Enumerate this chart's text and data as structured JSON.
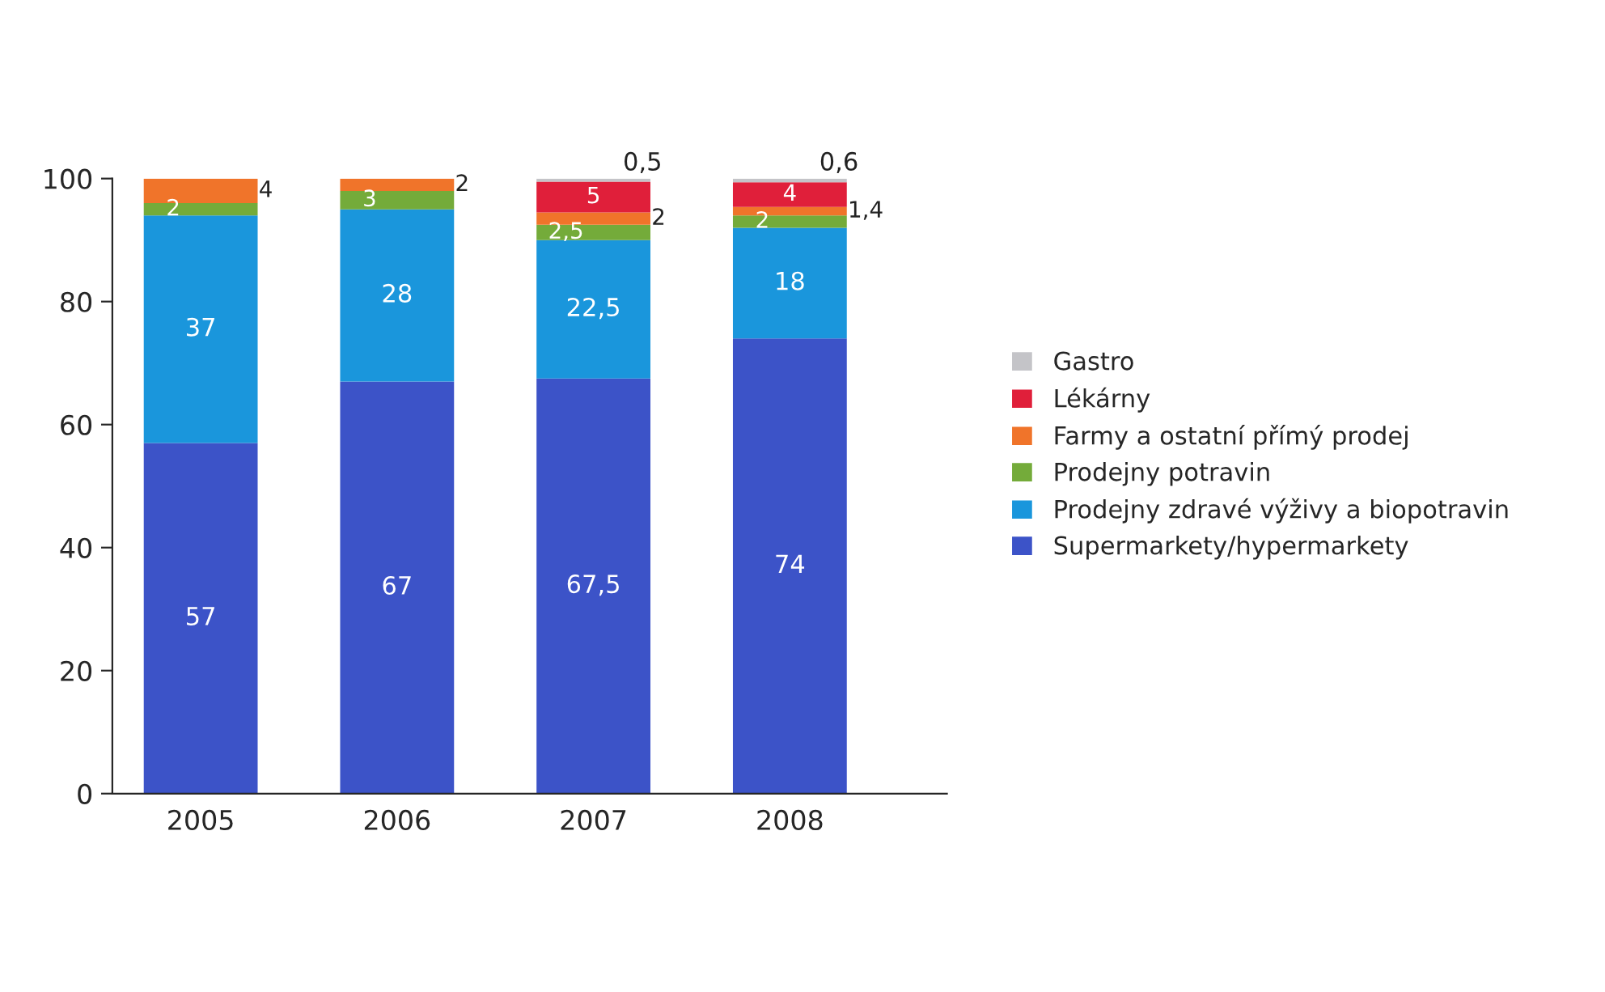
{
  "chart_data": {
    "type": "bar",
    "stacked": true,
    "categories": [
      "2005",
      "2006",
      "2007",
      "2008"
    ],
    "series": [
      {
        "name": "Supermarkety/hypermarkety",
        "color": "#3c53c8",
        "values": [
          57,
          67,
          67.5,
          74
        ],
        "value_labels": [
          "57",
          "67",
          "67,5",
          "74"
        ]
      },
      {
        "name": "Prodejny zdravé výživy a biopotravin",
        "color": "#1a96dc",
        "values": [
          37,
          28,
          22.5,
          18
        ],
        "value_labels": [
          "37",
          "28",
          "22,5",
          "18"
        ]
      },
      {
        "name": "Prodejny potravin",
        "color": "#74ab3a",
        "values": [
          2,
          3,
          2.5,
          2
        ],
        "value_labels": [
          "2",
          "3",
          "2,5",
          "2"
        ]
      },
      {
        "name": "Farmy a ostatní přímý prodej",
        "color": "#f0742a",
        "values": [
          4,
          2,
          2,
          1.4
        ],
        "value_labels": [
          "4",
          "2",
          "2",
          "1,4"
        ]
      },
      {
        "name": "Lékárny",
        "color": "#e01f3a",
        "values": [
          null,
          null,
          5,
          4
        ],
        "value_labels": [
          null,
          null,
          "5",
          "4"
        ]
      },
      {
        "name": "Gastro",
        "color": "#c4c4c8",
        "values": [
          null,
          null,
          0.5,
          0.6
        ],
        "value_labels": [
          null,
          null,
          "0,5",
          "0,6"
        ]
      }
    ],
    "ylim": [
      0,
      100
    ],
    "yticks": [
      0,
      20,
      40,
      60,
      80,
      100
    ],
    "grid": false,
    "legend": "right"
  }
}
